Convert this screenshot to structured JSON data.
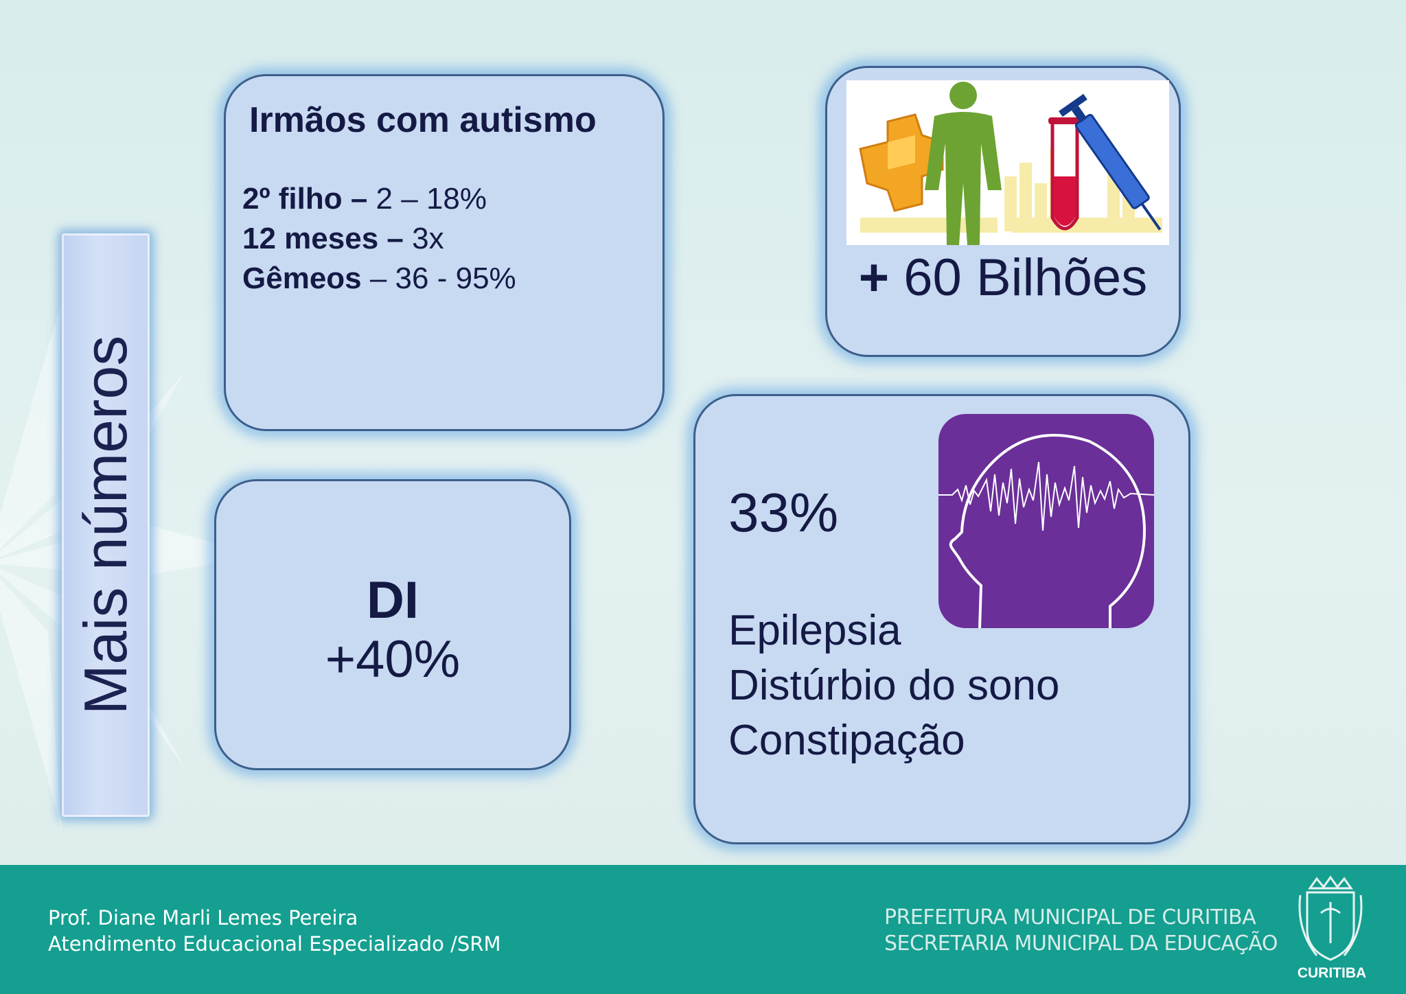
{
  "side_title": "Mais números",
  "siblings": {
    "title": "Irmãos com autismo",
    "rows": [
      {
        "label": "2º filho –",
        "value": " 2 – 18%"
      },
      {
        "label": "12 meses –",
        "value": " 3x"
      },
      {
        "label": "Gêmeos",
        "value": " – 36 - 95%"
      }
    ]
  },
  "billions": {
    "prefix": "+",
    "text": " 60 Bilhões",
    "art_icons": [
      "puzzle-piece-icon",
      "person-icon",
      "test-tube-icon",
      "syringe-icon"
    ]
  },
  "di": {
    "label": "DI",
    "value": "+40%"
  },
  "comorbidities": {
    "percent": "33%",
    "items": [
      "Epilepsia",
      "Distúrbio do sono",
      "Constipação"
    ],
    "icon": "brain-waves-icon",
    "icon_bg": "#6a2f98"
  },
  "footer": {
    "author_line1": "Prof. Diane Marli Lemes Pereira",
    "author_line2": "Atendimento Educacional Especializado /SRM",
    "org_line1": "PREFEITURA MUNICIPAL DE CURITIBA",
    "org_line2": "SECRETARIA MUNICIPAL DA EDUCAÇÃO",
    "crest_label": "CURITIBA",
    "background": "#149f90"
  }
}
